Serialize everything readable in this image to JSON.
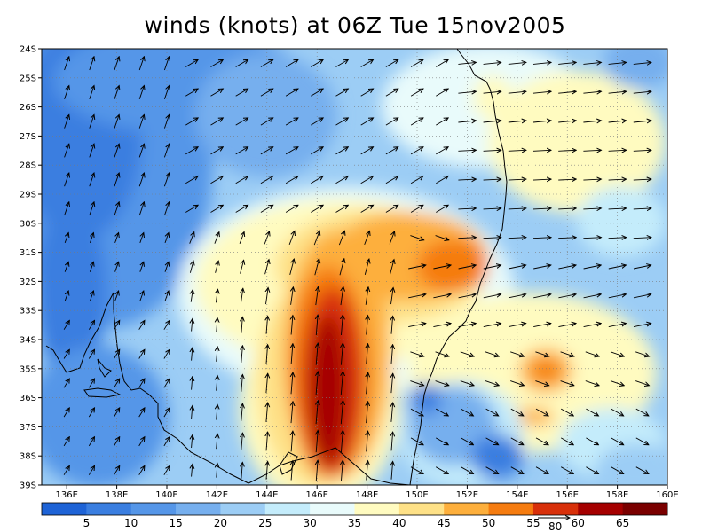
{
  "title": "winds (knots) at 06Z Tue 15nov2005",
  "map": {
    "lon_range": [
      135,
      160
    ],
    "lat_range": [
      -39,
      -24
    ],
    "lat_ticks": [
      "24S",
      "25S",
      "26S",
      "27S",
      "28S",
      "29S",
      "30S",
      "31S",
      "32S",
      "33S",
      "34S",
      "35S",
      "36S",
      "37S",
      "38S",
      "39S"
    ],
    "lon_ticks": [
      "136E",
      "138E",
      "140E",
      "142E",
      "144E",
      "146E",
      "148E",
      "150E",
      "152E",
      "154E",
      "156E",
      "158E",
      "160E"
    ],
    "gridlines": "dotted",
    "coastline_color": "#000000"
  },
  "colorbar": {
    "levels": [
      "5",
      "10",
      "15",
      "20",
      "25",
      "30",
      "35",
      "40",
      "45",
      "50",
      "55",
      "60",
      "65"
    ],
    "colors": [
      "#1e63d6",
      "#3a7ee0",
      "#5596e8",
      "#76afee",
      "#9ccdf5",
      "#c4ecfb",
      "#e9fbfb",
      "#fffbc0",
      "#fee187",
      "#fdaf3c",
      "#f57c10",
      "#d8300a",
      "#a50000",
      "#7a0000"
    ],
    "reference_vector_label": "80"
  },
  "wind_field": {
    "units": "knots",
    "jet_core_max_knots": 65,
    "jet_core_location": {
      "lon": 146.5,
      "lat": -36.5
    },
    "secondary_max_location": {
      "lon": 152.0,
      "lat": -31.5
    },
    "calm_region_location": {
      "lon": 152.5,
      "lat": -37.5
    }
  }
}
